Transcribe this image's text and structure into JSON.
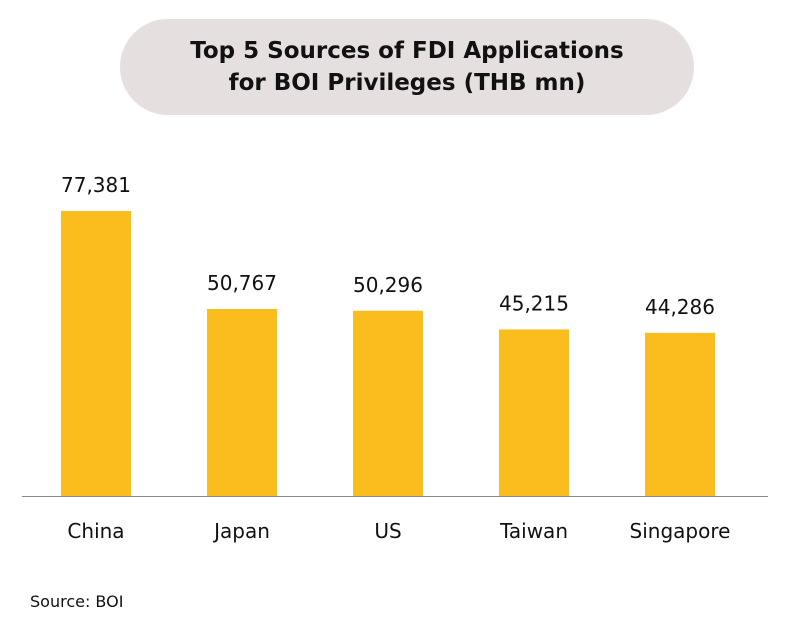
{
  "chart_data": {
    "type": "bar",
    "title_lines": [
      "Top 5 Sources of FDI Applications",
      "for BOI Privileges  (THB mn)"
    ],
    "categories": [
      "China",
      "Japan",
      "US",
      "Taiwan",
      "Singapore"
    ],
    "values": [
      77381,
      50767,
      50296,
      45215,
      44286
    ],
    "value_labels": [
      "77,381",
      "50,767",
      "50,296",
      "45,215",
      "44,286"
    ],
    "ylim": [
      0,
      77381
    ],
    "grid": false,
    "bar_color": "#fbbd1d"
  },
  "source": "Source: BOI"
}
